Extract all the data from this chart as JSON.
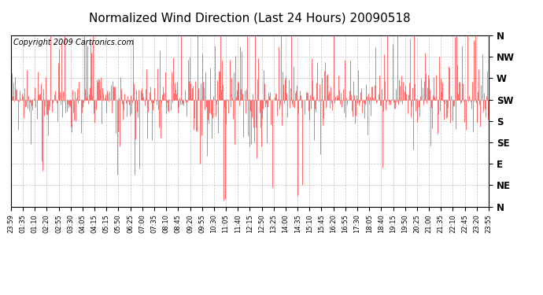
{
  "title": "Normalized Wind Direction (Last 24 Hours) 20090518",
  "copyright_text": "Copyright 2009 Cartronics.com",
  "ytick_labels": [
    "N",
    "NW",
    "W",
    "SW",
    "S",
    "SE",
    "E",
    "NE",
    "N"
  ],
  "ytick_values": [
    8,
    7,
    6,
    5,
    4,
    3,
    2,
    1,
    0
  ],
  "xtick_labels": [
    "23:59",
    "01:35",
    "01:10",
    "02:20",
    "02:55",
    "03:30",
    "04:05",
    "04:15",
    "05:15",
    "05:50",
    "06:25",
    "07:00",
    "07:35",
    "08:10",
    "08:45",
    "09:20",
    "09:55",
    "10:30",
    "11:05",
    "11:40",
    "12:15",
    "12:50",
    "13:25",
    "14:00",
    "14:35",
    "15:10",
    "15:45",
    "16:20",
    "16:55",
    "17:30",
    "18:05",
    "18:40",
    "19:15",
    "19:50",
    "20:25",
    "21:00",
    "21:35",
    "22:10",
    "22:45",
    "23:20",
    "23:55"
  ],
  "line_color": "#ff0000",
  "background_color": "#ffffff",
  "grid_color": "#bbbbbb",
  "title_fontsize": 11,
  "copyright_fontsize": 7,
  "sw_level": 5.0,
  "ylim": [
    0,
    8
  ],
  "n_points": 576
}
